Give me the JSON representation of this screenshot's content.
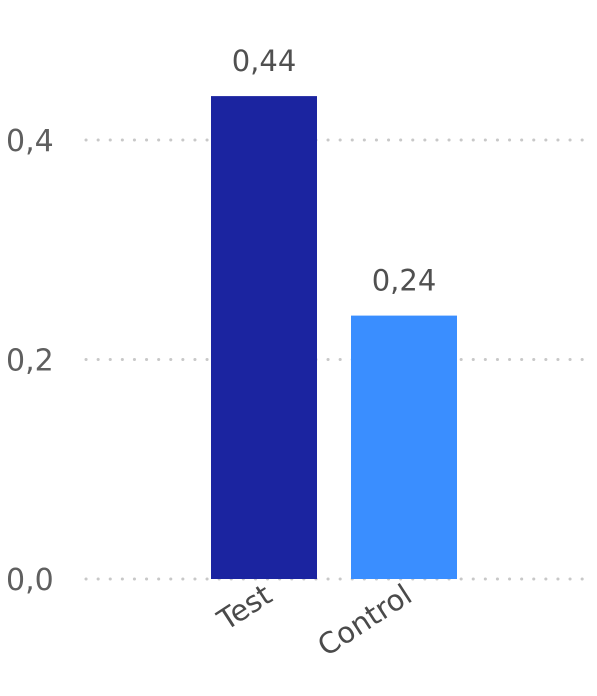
{
  "chart_data": {
    "type": "bar",
    "categories": [
      "Test",
      "Control"
    ],
    "values": [
      0.44,
      0.24
    ],
    "data_labels": [
      "0,44",
      "0,24"
    ],
    "yticks": [
      0.0,
      0.2,
      0.4
    ],
    "ytick_labels": [
      "0,0",
      "0,2",
      "0,4"
    ],
    "ylim": [
      0,
      0.5
    ],
    "grid": true,
    "legend": "none",
    "title": "",
    "xlabel": "",
    "ylabel": "",
    "colors": [
      "#1b24a0",
      "#3a8eff"
    ]
  }
}
